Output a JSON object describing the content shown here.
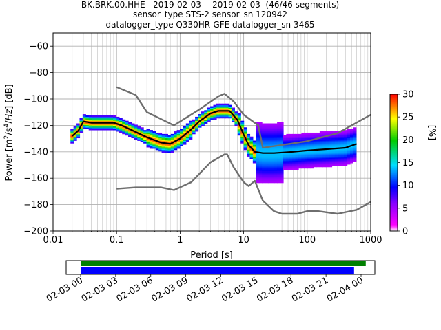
{
  "header": {
    "title_line1": "BK.BRK.00.HHE   2019-02-03 -- 2019-02-03  (46/46 segments)",
    "title_line2": "sensor_type STS-2 sensor_sn 120942",
    "title_line3": "datalogger_type Q330HR-GFE datalogger_sn 3465"
  },
  "chart_data": [
    {
      "type": "heatmap",
      "xlabel": "Period [s]",
      "ylabel": "Power [m²/s⁴/Hz] [dB]",
      "xscale": "log",
      "xlim": [
        0.01,
        1000
      ],
      "ylim": [
        -200,
        -50
      ],
      "x_ticks": [
        0.01,
        0.1,
        1,
        10,
        100,
        1000
      ],
      "x_tick_labels": [
        "0.01",
        "0.1",
        "1",
        "10",
        "100",
        "1000"
      ],
      "y_ticks": [
        -200,
        -180,
        -160,
        -140,
        -120,
        -100,
        -80,
        -60
      ],
      "y_tick_labels": [
        "−200",
        "−180",
        "−160",
        "−140",
        "−120",
        "−100",
        "−80",
        "−60"
      ],
      "grid": true,
      "colorbar": {
        "label": "[%]",
        "range": [
          0,
          30
        ],
        "ticks": [
          0,
          5,
          10,
          15,
          20,
          25,
          30
        ],
        "tick_labels": [
          "0",
          "5",
          "10",
          "15",
          "20",
          "25",
          "30"
        ]
      },
      "series": [
        {
          "color": "#000000",
          "points": [
            [
              0.02,
              -128
            ],
            [
              0.025,
              -124
            ],
            [
              0.03,
              -117
            ],
            [
              0.04,
              -118
            ],
            [
              0.06,
              -118
            ],
            [
              0.09,
              -118
            ],
            [
              0.12,
              -120
            ],
            [
              0.2,
              -125
            ],
            [
              0.3,
              -129
            ],
            [
              0.5,
              -133
            ],
            [
              0.7,
              -134
            ],
            [
              1.0,
              -130
            ],
            [
              1.5,
              -123
            ],
            [
              2.0,
              -117
            ],
            [
              3.0,
              -111
            ],
            [
              4.0,
              -109
            ],
            [
              6.0,
              -109
            ],
            [
              8.0,
              -116
            ],
            [
              10.0,
              -127
            ],
            [
              12.0,
              -135
            ],
            [
              15.0,
              -140
            ],
            [
              20.0,
              -141
            ],
            [
              30.0,
              -141
            ],
            [
              60.0,
              -140
            ],
            [
              100.0,
              -139
            ],
            [
              200.0,
              -138
            ],
            [
              400.0,
              -137
            ],
            [
              600.0,
              -134
            ]
          ]
        },
        {
          "color": "#6e6e6e",
          "points": [
            [
              0.1,
              -91
            ],
            [
              0.2,
              -97
            ],
            [
              0.3,
              -110
            ],
            [
              0.8,
              -120
            ],
            [
              2.0,
              -108
            ],
            [
              4.0,
              -98
            ],
            [
              5.0,
              -96
            ],
            [
              7.0,
              -102
            ],
            [
              10.0,
              -112
            ],
            [
              17.0,
              -120
            ],
            [
              20.0,
              -137
            ],
            [
              100.0,
              -132
            ],
            [
              300.0,
              -126
            ],
            [
              1000.0,
              -112
            ]
          ]
        },
        {
          "color": "#6e6e6e",
          "points": [
            [
              0.1,
              -168
            ],
            [
              0.2,
              -167
            ],
            [
              0.5,
              -167
            ],
            [
              0.8,
              -169
            ],
            [
              1.5,
              -163
            ],
            [
              3.0,
              -148
            ],
            [
              5.0,
              -142
            ],
            [
              5.5,
              -142
            ],
            [
              7.0,
              -152
            ],
            [
              10.0,
              -163
            ],
            [
              12.0,
              -166
            ],
            [
              15.0,
              -162
            ],
            [
              20.0,
              -177
            ],
            [
              30.0,
              -185
            ],
            [
              40.0,
              -187
            ],
            [
              70.0,
              -187
            ],
            [
              100.0,
              -185
            ],
            [
              150.0,
              -185
            ],
            [
              300.0,
              -187
            ],
            [
              600.0,
              -184
            ],
            [
              1000.0,
              -178
            ]
          ]
        }
      ]
    },
    {
      "type": "bar",
      "orientation": "horizontal",
      "x_tick_labels": [
        "02-03 00",
        "02-03 03",
        "02-03 06",
        "02-03 09",
        "02-03 12",
        "02-03 15",
        "02-03 18",
        "02-03 21",
        "02-04 00"
      ],
      "series": [
        {
          "color": "#008000",
          "start_hours": 0.0,
          "end_hours": 24.4
        },
        {
          "color": "#0000ff",
          "start_hours": 0.0,
          "end_hours": 23.4
        }
      ]
    }
  ]
}
